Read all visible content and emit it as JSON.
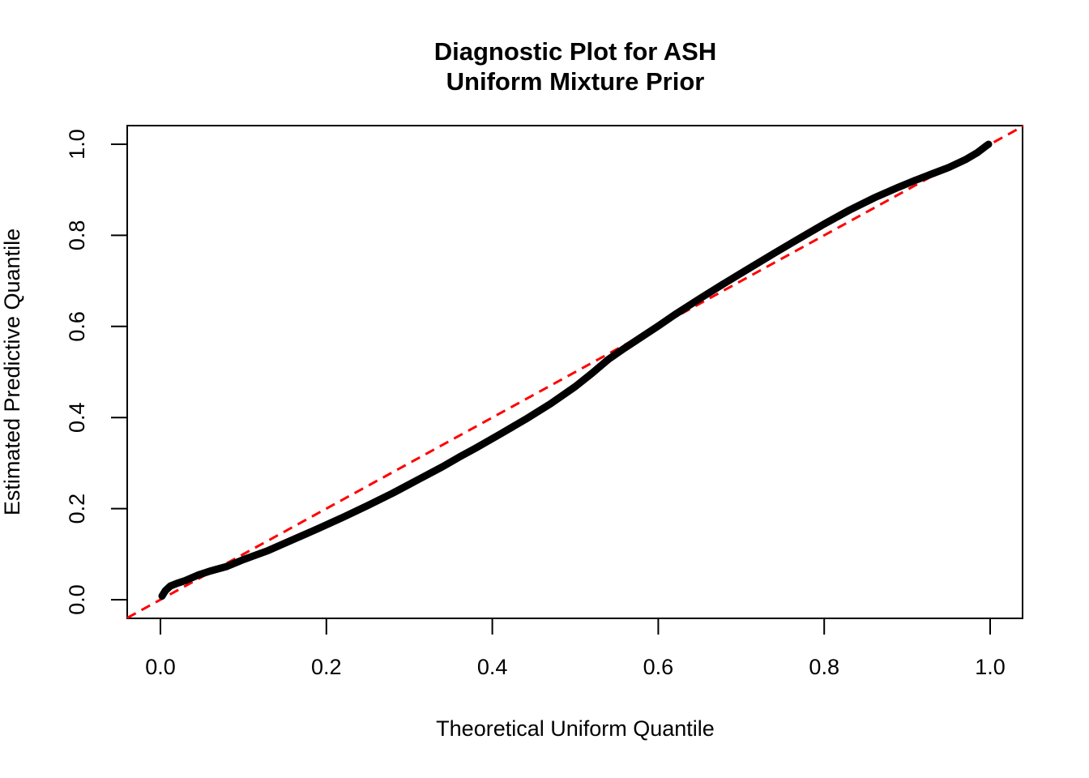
{
  "figure": {
    "background": "#FFFFFF",
    "foreground": "#000000"
  },
  "chart_data": {
    "type": "scatter",
    "title": "Diagnostic Plot for ASH\nUniform Mixture Prior",
    "title_lines": [
      "Diagnostic Plot for ASH",
      "Uniform Mixture Prior"
    ],
    "xlabel": "Theoretical Uniform Quantile",
    "ylabel": "Estimated Predictive Quantile",
    "xlim": [
      0.0,
      1.0
    ],
    "ylim": [
      0.0,
      1.0
    ],
    "axis_padding_fraction": 0.04,
    "grid": false,
    "legend": null,
    "x_ticks": [
      0.0,
      0.2,
      0.4,
      0.6,
      0.8,
      1.0
    ],
    "y_ticks": [
      0.0,
      0.2,
      0.4,
      0.6,
      0.8,
      1.0
    ],
    "x_tick_labels": [
      "0.0",
      "0.2",
      "0.4",
      "0.6",
      "0.8",
      "1.0"
    ],
    "y_tick_labels": [
      "0.0",
      "0.2",
      "0.4",
      "0.6",
      "0.8",
      "1.0"
    ],
    "series": [
      {
        "name": "estimated-predictive-quantiles",
        "style": "solid",
        "color": "#000000",
        "stroke_width": 9,
        "points": [
          [
            0.002,
            0.008
          ],
          [
            0.006,
            0.02
          ],
          [
            0.012,
            0.03
          ],
          [
            0.02,
            0.036
          ],
          [
            0.03,
            0.042
          ],
          [
            0.045,
            0.054
          ],
          [
            0.06,
            0.063
          ],
          [
            0.08,
            0.073
          ],
          [
            0.1,
            0.088
          ],
          [
            0.13,
            0.108
          ],
          [
            0.16,
            0.132
          ],
          [
            0.19,
            0.156
          ],
          [
            0.22,
            0.181
          ],
          [
            0.25,
            0.207
          ],
          [
            0.28,
            0.234
          ],
          [
            0.31,
            0.263
          ],
          [
            0.34,
            0.292
          ],
          [
            0.36,
            0.313
          ],
          [
            0.38,
            0.333
          ],
          [
            0.41,
            0.364
          ],
          [
            0.44,
            0.396
          ],
          [
            0.47,
            0.43
          ],
          [
            0.5,
            0.468
          ],
          [
            0.52,
            0.497
          ],
          [
            0.54,
            0.528
          ],
          [
            0.56,
            0.553
          ],
          [
            0.58,
            0.577
          ],
          [
            0.6,
            0.601
          ],
          [
            0.62,
            0.626
          ],
          [
            0.65,
            0.661
          ],
          [
            0.68,
            0.695
          ],
          [
            0.71,
            0.728
          ],
          [
            0.74,
            0.761
          ],
          [
            0.77,
            0.793
          ],
          [
            0.8,
            0.825
          ],
          [
            0.83,
            0.855
          ],
          [
            0.86,
            0.882
          ],
          [
            0.89,
            0.906
          ],
          [
            0.91,
            0.921
          ],
          [
            0.93,
            0.935
          ],
          [
            0.95,
            0.949
          ],
          [
            0.97,
            0.966
          ],
          [
            0.985,
            0.982
          ],
          [
            0.995,
            0.996
          ],
          [
            0.998,
            1.0
          ]
        ]
      },
      {
        "name": "diagonal-reference-line",
        "style": "dashed",
        "color": "#FF0000",
        "stroke_width": 3,
        "dash_pattern": [
          12,
          8
        ],
        "points": [
          [
            -0.04,
            -0.04
          ],
          [
            1.04,
            1.04
          ]
        ]
      }
    ]
  }
}
